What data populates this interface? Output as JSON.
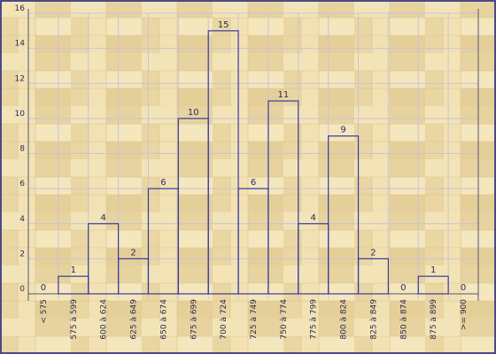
{
  "chart_data": {
    "type": "bar",
    "categories": [
      "< 575",
      "575 à 599",
      "600 à 624",
      "625 à 649",
      "650 à 674",
      "675 à 699",
      "700 à 724",
      "725 à 749",
      "750 à 774",
      "775 à 799",
      "800 à 824",
      "825 à 849",
      "850 à 874",
      "875 à 899",
      ">= 900"
    ],
    "values": [
      0,
      1,
      4,
      2,
      6,
      10,
      15,
      6,
      11,
      4,
      9,
      2,
      0,
      1,
      0
    ],
    "value_labels": [
      "0",
      "1",
      "4",
      "2",
      "6",
      "10",
      "15",
      "6",
      "11",
      "4",
      "9",
      "2",
      "0",
      "1",
      "0"
    ],
    "ylim": [
      0,
      16
    ],
    "yticks": [
      0,
      2,
      4,
      6,
      8,
      10,
      12,
      14,
      16
    ],
    "ytick_labels": [
      "0",
      "2",
      "4",
      "6",
      "8",
      "10",
      "12",
      "14",
      "16"
    ],
    "grid": true,
    "bar_fill": "none",
    "colors": {
      "bar_stroke": "#3a3aa0",
      "grid": "#c9c2d6",
      "axis": "#555577",
      "text": "#2a2a55",
      "frame": "#4a4a88",
      "wood_light": "#f2e3b4",
      "wood_mid": "#e8d29a",
      "wood_dark": "#dcc185"
    }
  }
}
